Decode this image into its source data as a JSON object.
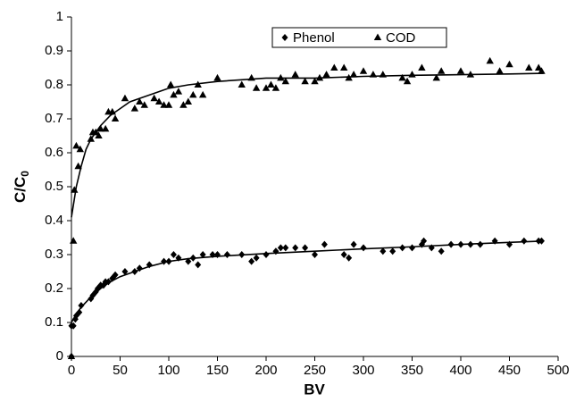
{
  "chart_data": {
    "type": "scatter",
    "xlabel": "BV",
    "ylabel": {
      "text": "C/C",
      "subscript": "0"
    },
    "xlim": [
      0,
      500
    ],
    "xticks": [
      0,
      50,
      100,
      150,
      200,
      250,
      300,
      350,
      400,
      450,
      500
    ],
    "ylim": [
      0,
      1
    ],
    "yticks": [
      0,
      0.1,
      0.2,
      0.3,
      0.4,
      0.5,
      0.6,
      0.7,
      0.8,
      0.9,
      1
    ],
    "legend": "top",
    "series": [
      {
        "name": "Phenol",
        "marker": "diamond",
        "color": "#000000",
        "x": [
          0,
          0,
          2,
          4,
          5,
          8,
          10,
          20,
          22,
          25,
          27,
          30,
          33,
          35,
          38,
          42,
          45,
          55,
          65,
          70,
          80,
          95,
          100,
          105,
          110,
          120,
          125,
          130,
          135,
          145,
          150,
          160,
          175,
          185,
          190,
          200,
          210,
          215,
          220,
          230,
          240,
          250,
          260,
          280,
          285,
          290,
          300,
          320,
          330,
          340,
          350,
          360,
          362,
          370,
          380,
          390,
          400,
          410,
          420,
          435,
          450,
          465,
          480,
          483
        ],
        "values": [
          0,
          0.09,
          0.09,
          0.11,
          0.12,
          0.13,
          0.15,
          0.17,
          0.18,
          0.19,
          0.2,
          0.21,
          0.21,
          0.22,
          0.22,
          0.23,
          0.24,
          0.25,
          0.25,
          0.26,
          0.27,
          0.28,
          0.28,
          0.3,
          0.29,
          0.28,
          0.29,
          0.27,
          0.3,
          0.3,
          0.3,
          0.3,
          0.3,
          0.28,
          0.29,
          0.3,
          0.31,
          0.32,
          0.32,
          0.32,
          0.32,
          0.3,
          0.33,
          0.3,
          0.29,
          0.33,
          0.32,
          0.31,
          0.31,
          0.32,
          0.32,
          0.33,
          0.34,
          0.32,
          0.31,
          0.33,
          0.33,
          0.33,
          0.33,
          0.34,
          0.33,
          0.34,
          0.34,
          0.34
        ]
      },
      {
        "name": "COD",
        "marker": "triangle",
        "color": "#000000",
        "x": [
          0,
          2,
          3,
          5,
          7,
          9,
          20,
          22,
          25,
          28,
          30,
          35,
          38,
          42,
          45,
          55,
          65,
          70,
          75,
          85,
          90,
          95,
          100,
          102,
          105,
          110,
          115,
          120,
          125,
          130,
          135,
          150,
          175,
          185,
          190,
          200,
          205,
          210,
          215,
          220,
          230,
          240,
          250,
          255,
          262,
          270,
          280,
          285,
          290,
          300,
          310,
          320,
          340,
          345,
          350,
          360,
          375,
          380,
          400,
          410,
          430,
          440,
          450,
          470,
          480,
          483
        ],
        "values": [
          0,
          0.34,
          0.49,
          0.62,
          0.56,
          0.61,
          0.64,
          0.66,
          0.66,
          0.65,
          0.67,
          0.67,
          0.72,
          0.72,
          0.7,
          0.76,
          0.73,
          0.75,
          0.74,
          0.76,
          0.75,
          0.74,
          0.74,
          0.8,
          0.77,
          0.78,
          0.74,
          0.75,
          0.77,
          0.8,
          0.77,
          0.82,
          0.8,
          0.82,
          0.79,
          0.79,
          0.8,
          0.79,
          0.82,
          0.81,
          0.83,
          0.81,
          0.81,
          0.82,
          0.83,
          0.85,
          0.85,
          0.82,
          0.83,
          0.84,
          0.83,
          0.83,
          0.82,
          0.81,
          0.83,
          0.85,
          0.82,
          0.84,
          0.84,
          0.83,
          0.87,
          0.84,
          0.86,
          0.85,
          0.85,
          0.84
        ]
      }
    ],
    "curves": [
      {
        "color": "#000000",
        "x": [
          0,
          5,
          10,
          15,
          20,
          30,
          40,
          50,
          60,
          80,
          100,
          120,
          150,
          200,
          250,
          300,
          350,
          400,
          450,
          485
        ],
        "values": [
          0.1,
          0.125,
          0.145,
          0.16,
          0.175,
          0.2,
          0.22,
          0.235,
          0.245,
          0.265,
          0.28,
          0.288,
          0.295,
          0.303,
          0.31,
          0.317,
          0.323,
          0.33,
          0.336,
          0.34
        ]
      },
      {
        "color": "#000000",
        "x": [
          0,
          5,
          10,
          15,
          20,
          30,
          40,
          50,
          60,
          80,
          100,
          120,
          150,
          200,
          250,
          300,
          350,
          400,
          450,
          485
        ],
        "values": [
          0.41,
          0.5,
          0.56,
          0.61,
          0.64,
          0.68,
          0.71,
          0.73,
          0.75,
          0.77,
          0.79,
          0.8,
          0.81,
          0.82,
          0.82,
          0.825,
          0.828,
          0.83,
          0.832,
          0.834
        ]
      }
    ]
  }
}
